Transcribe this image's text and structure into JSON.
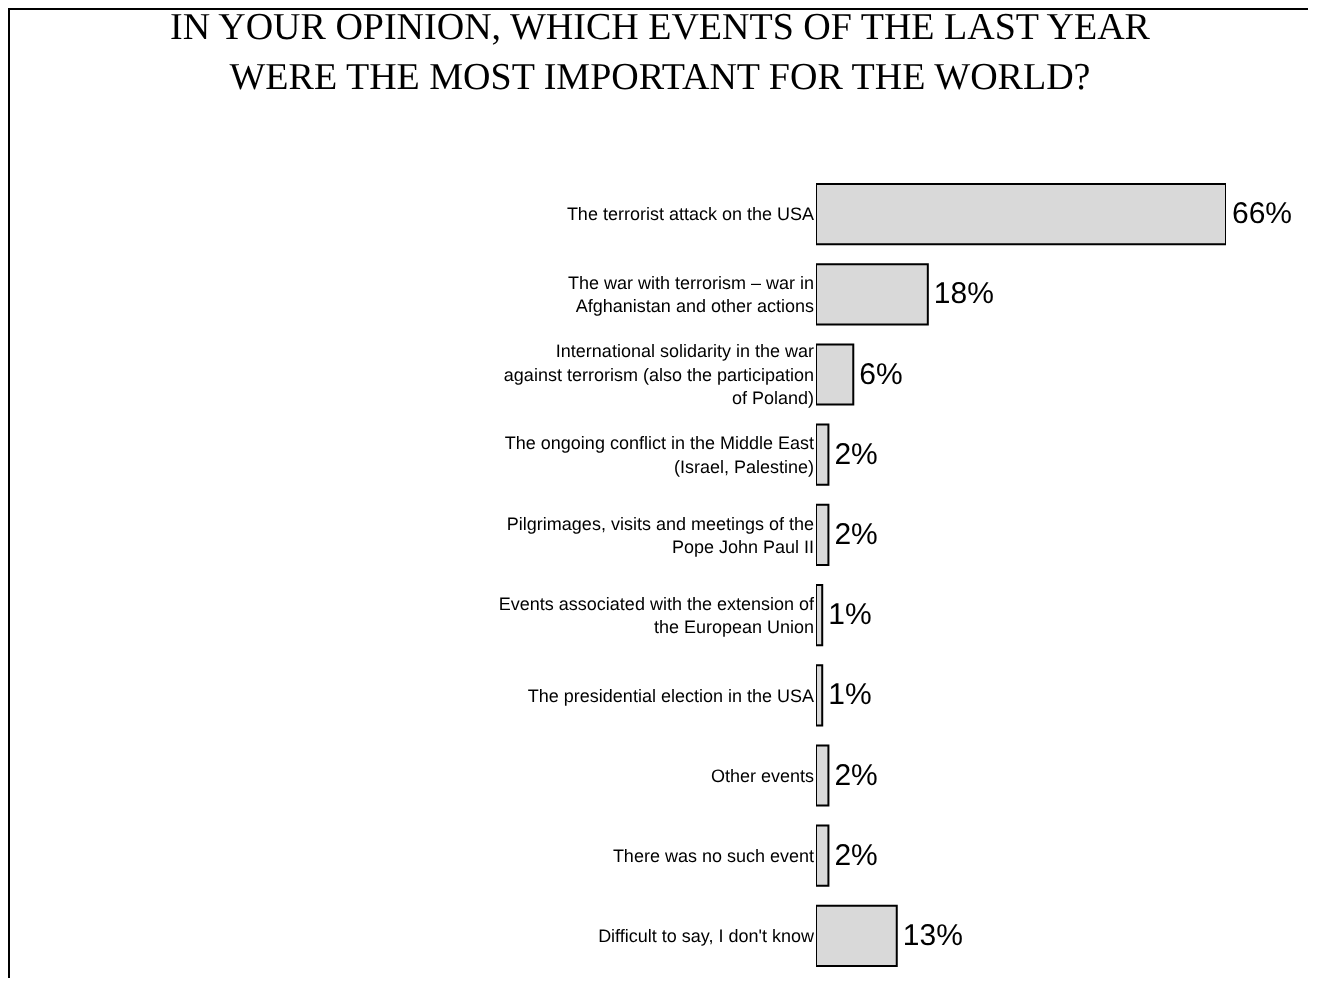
{
  "chart_data": {
    "type": "bar",
    "orientation": "horizontal",
    "title": "IN YOUR OPINION, WHICH EVENTS OF THE LAST YEAR WERE THE MOST IMPORTANT FOR THE WORLD?",
    "categories": [
      "The terrorist attack on the USA",
      "The war with terrorism – war in Afghanistan and other actions",
      "International solidarity in the war against terrorism (also the participation of Poland)",
      "The ongoing conflict in the Middle East (Israel, Palestine)",
      "Pilgrimages, visits and meetings of the Pope John Paul II",
      "Events associated with the extension of the European Union",
      "The presidential election in the USA",
      "Other events",
      "There was no such event",
      "Difficult to say, I don't know"
    ],
    "values": [
      66,
      18,
      6,
      2,
      2,
      1,
      1,
      2,
      2,
      13
    ],
    "value_labels": [
      "66%",
      "18%",
      "6%",
      "2%",
      "2%",
      "1%",
      "1%",
      "2%",
      "2%",
      "13%"
    ],
    "color": "#d9d9d9"
  }
}
